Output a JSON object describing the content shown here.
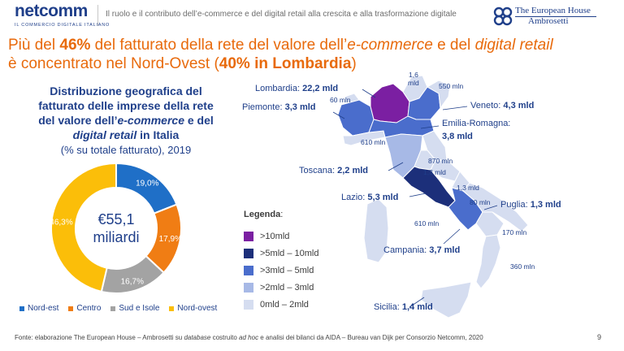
{
  "header": {
    "logo_text": "netcomm",
    "logo_tagline": "IL COMMERCIO DIGITALE ITALIANO",
    "subtitle": "Il ruolo e il contributo dell’e-commerce e del digital retail alla crescita e alla trasformazione digitale",
    "brand_line1": "The European House",
    "brand_line2": "Ambrosetti"
  },
  "title": {
    "t1": "Più del ",
    "t2": "46%",
    "t3": " del fatturato della rete del valore dell’",
    "t4": "e-commerce",
    "t5": " e del ",
    "t6": "digital retail",
    "t7": "è concentrato nel Nord-Ovest (",
    "t8": "40% in Lombardia",
    "t9": ")"
  },
  "chart_title": {
    "l1": "Distribuzione geografica del",
    "l2": "fatturato delle imprese della rete",
    "l3a": "del valore dell’",
    "l3b": "e-commerce",
    "l3c": " e del",
    "l4a": "digital retail",
    "l4b": " in Italia",
    "sub": "(% su totale fatturato), 2019"
  },
  "chart_data": {
    "type": "pie",
    "center_value": "€55,1",
    "center_unit": "miliardi",
    "categories": [
      "Nord-est",
      "Centro",
      "Sud e Isole",
      "Nord-ovest"
    ],
    "values": [
      19.0,
      17.9,
      16.7,
      46.3
    ],
    "labels": [
      "19,0%",
      "17,9%",
      "16,7%",
      "46,3%"
    ],
    "colors": [
      "#1f6fc7",
      "#f07d14",
      "#a3a3a3",
      "#fbbe09"
    ],
    "legend_position": "bottom"
  },
  "map": {
    "regions": {
      "lombardia": {
        "label": "Lombardia:",
        "value": "22,2 mld"
      },
      "piemonte": {
        "label": "Piemonte:",
        "value": "3,3 mld"
      },
      "veneto": {
        "label": "Veneto:",
        "value": "4,3 mld"
      },
      "emilia": {
        "label": "Emilia-Romagna:",
        "value": "3,8 mld"
      },
      "toscana": {
        "label": "Toscana:",
        "value": "2,2 mld"
      },
      "lazio": {
        "label": "Lazio:",
        "value": "5,3 mld"
      },
      "puglia": {
        "label": "Puglia:",
        "value": "1,3 mld"
      },
      "campania": {
        "label": "Campania:",
        "value": "3,7 mld"
      },
      "sicilia": {
        "label": "Sicilia:",
        "value": "1,4 mld"
      }
    },
    "small_values": {
      "trentino": "1,6",
      "trentino_unit": "mld",
      "friuli": "550 mln",
      "valle": "60 mln",
      "liguria": "610 mln",
      "umbria": "1,3 mld",
      "marche": "870 mln",
      "abruzzo": "1,3 mld",
      "molise": "80 mln",
      "basilicata": "170 mln",
      "calabria": "360 mln",
      "sardegna": "610 mln"
    },
    "colors": {
      "over10": "#7b1fa2",
      "r5_10": "#1c2f7a",
      "r3_5": "#4a6dcc",
      "r2_3": "#a7b9e6",
      "r0_2": "#d5ddf0"
    }
  },
  "map_legend": {
    "title": "Legenda",
    "items": [
      ">10mld",
      ">5mld – 10mld",
      ">3mld – 5mld",
      ">2mld – 3mld",
      "0mld – 2mld"
    ]
  },
  "footer": {
    "s1": "Fonte: elaborazione The European House – Ambrosetti su ",
    "s2": "database",
    "s3": " costruito ",
    "s4": "ad hoc",
    "s5": " e analisi dei bilanci da AIDA – Bureau van Dijk per Consorzio Netcomm, 2020",
    "page": "9"
  }
}
